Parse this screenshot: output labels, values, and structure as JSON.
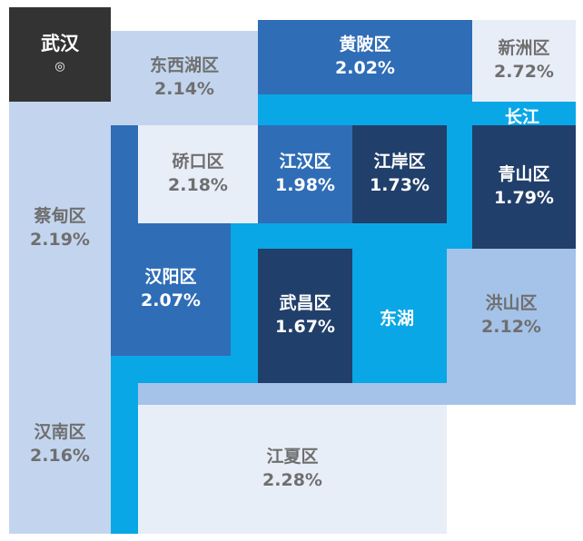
{
  "map": {
    "title": "武汉",
    "title_mark": "◎",
    "river_label": "长江",
    "lake_label": "东湖",
    "colors": {
      "water": "#0aa7e6",
      "title_bg": "#333333",
      "level_lightest": "#e8eef8",
      "level_light": "#c3d5ee",
      "level_mid": "#a5c3e9",
      "level_strong": "#2f6db6",
      "level_darkest": "#213f6b"
    },
    "districts": [
      {
        "name": "东西湖区",
        "value": "2.14%"
      },
      {
        "name": "黄陂区",
        "value": "2.02%"
      },
      {
        "name": "新洲区",
        "value": "2.72%"
      },
      {
        "name": "蔡甸区",
        "value": "2.19%"
      },
      {
        "name": "硚口区",
        "value": "2.18%"
      },
      {
        "name": "江汉区",
        "value": "1.98%"
      },
      {
        "name": "江岸区",
        "value": "1.73%"
      },
      {
        "name": "青山区",
        "value": "1.79%"
      },
      {
        "name": "汉阳区",
        "value": "2.07%"
      },
      {
        "name": "武昌区",
        "value": "1.67%"
      },
      {
        "name": "洪山区",
        "value": "2.12%"
      },
      {
        "name": "汉南区",
        "value": "2.16%"
      },
      {
        "name": "江夏区",
        "value": "2.28%"
      }
    ]
  }
}
